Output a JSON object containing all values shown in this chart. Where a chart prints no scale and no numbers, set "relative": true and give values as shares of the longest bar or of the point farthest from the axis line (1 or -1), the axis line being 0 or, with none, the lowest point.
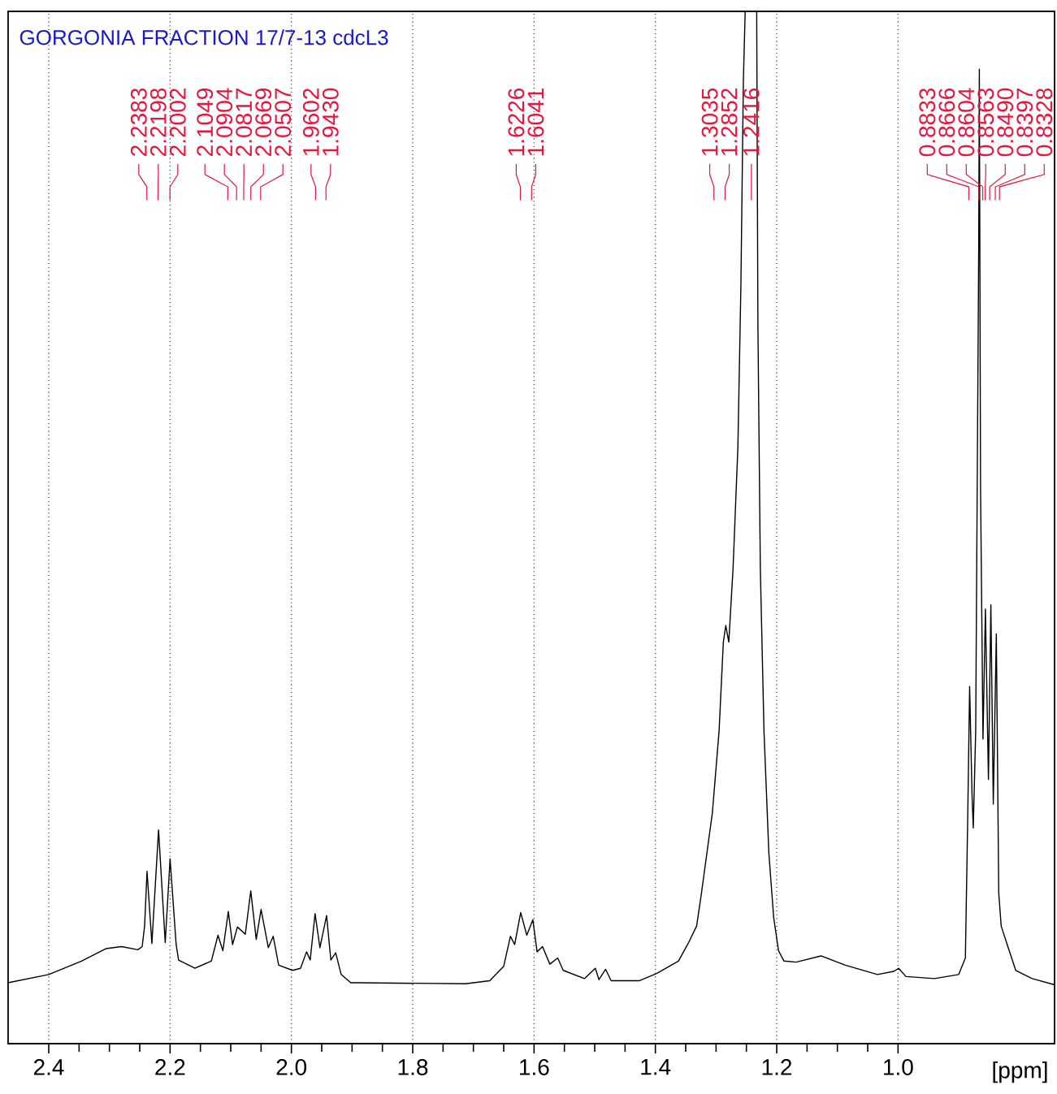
{
  "chart_data": {
    "type": "line",
    "title": "GORGONIA FRACTION 17/7-13 cdcL3",
    "xlabel": "[ppm]",
    "relative": true,
    "grid": "x",
    "marker": "none",
    "color": "#000000",
    "xlim": [
      2.467,
      0.742
    ],
    "xticks": [
      2.4,
      2.2,
      {
        "value": 2.0,
        "label": "2.0"
      },
      1.8,
      1.6,
      1.4,
      1.2,
      {
        "value": 1.0,
        "label": "1.0"
      }
    ],
    "x": [
      2.467,
      2.4,
      2.346,
      2.306,
      2.28,
      2.253,
      2.246,
      2.242,
      2.238,
      2.23,
      2.219,
      2.208,
      2.2,
      2.19,
      2.186,
      2.159,
      2.132,
      2.121,
      2.113,
      2.104,
      2.097,
      2.089,
      2.076,
      2.067,
      2.058,
      2.05,
      2.038,
      2.03,
      2.021,
      1.998,
      1.985,
      1.975,
      1.969,
      1.961,
      1.953,
      1.942,
      1.935,
      1.927,
      1.918,
      1.902,
      1.891,
      1.713,
      1.673,
      1.65,
      1.639,
      1.632,
      1.622,
      1.612,
      1.602,
      1.595,
      1.586,
      1.574,
      1.561,
      1.552,
      1.517,
      1.499,
      1.493,
      1.482,
      1.473,
      1.426,
      1.398,
      1.362,
      1.346,
      1.332,
      1.324,
      1.315,
      1.306,
      1.295,
      1.288,
      1.284,
      1.279,
      1.272,
      1.264,
      1.259,
      1.255,
      1.252,
      1.233,
      1.231,
      1.227,
      1.221,
      1.213,
      1.205,
      1.197,
      1.188,
      1.168,
      1.127,
      1.087,
      1.034,
      1.007,
      0.999,
      0.987,
      0.94,
      0.9,
      0.889,
      0.885,
      0.882,
      0.878,
      0.876,
      0.872,
      0.867,
      0.866,
      0.864,
      0.86,
      0.856,
      0.851,
      0.847,
      0.843,
      0.838,
      0.834,
      0.83,
      0.819,
      0.806,
      0.779,
      0.742
    ],
    "values": [
      0.059,
      0.067,
      0.08,
      0.092,
      0.094,
      0.091,
      0.094,
      0.114,
      0.167,
      0.097,
      0.207,
      0.098,
      0.179,
      0.096,
      0.081,
      0.073,
      0.08,
      0.105,
      0.09,
      0.128,
      0.096,
      0.113,
      0.106,
      0.148,
      0.101,
      0.13,
      0.093,
      0.104,
      0.076,
      0.071,
      0.073,
      0.089,
      0.081,
      0.126,
      0.093,
      0.124,
      0.081,
      0.088,
      0.067,
      0.059,
      0.059,
      0.058,
      0.061,
      0.075,
      0.104,
      0.096,
      0.127,
      0.105,
      0.12,
      0.089,
      0.094,
      0.077,
      0.083,
      0.071,
      0.063,
      0.073,
      0.062,
      0.072,
      0.061,
      0.061,
      0.068,
      0.08,
      0.097,
      0.114,
      0.146,
      0.185,
      0.224,
      0.303,
      0.389,
      0.405,
      0.389,
      0.46,
      0.578,
      0.736,
      0.932,
      1.0,
      1.0,
      0.696,
      0.46,
      0.303,
      0.185,
      0.122,
      0.09,
      0.08,
      0.079,
      0.085,
      0.076,
      0.067,
      0.07,
      0.073,
      0.065,
      0.063,
      0.067,
      0.083,
      0.224,
      0.346,
      0.24,
      0.209,
      0.303,
      0.775,
      0.944,
      0.539,
      0.295,
      0.421,
      0.256,
      0.425,
      0.232,
      0.397,
      0.146,
      0.114,
      0.094,
      0.071,
      0.063,
      0.057
    ],
    "annotations": [
      {
        "text": "2.2383",
        "x": 2.2383
      },
      {
        "text": "2.2198",
        "x": 2.2198
      },
      {
        "text": "2.2002",
        "x": 2.2002
      },
      {
        "text": "2.1049",
        "x": 2.1049
      },
      {
        "text": "2.0904",
        "x": 2.0904
      },
      "2.0817",
      {
        "text": "2.0669",
        "x": 2.0669
      },
      {
        "text": "2.0507",
        "x": 2.0507
      },
      {
        "text": "1.9602",
        "x": 1.9602
      },
      {
        "text": "1.9430",
        "x": 1.943
      },
      {
        "text": "1.6226",
        "x": 1.6226
      },
      {
        "text": "1.6041",
        "x": 1.6041
      },
      {
        "text": "1.3035",
        "x": 1.3035
      },
      {
        "text": "1.2852",
        "x": 1.2852
      },
      "1.2416",
      {
        "text": "0.8833",
        "x": 0.8833
      },
      {
        "text": "0.8666",
        "x": 0.8666
      },
      {
        "text": "0.8604",
        "x": 0.8604
      },
      {
        "text": "0.8563",
        "x": 0.8563
      },
      {
        "text": "0.8490",
        "x": 0.849
      },
      {
        "text": "0.8397",
        "x": 0.8397
      },
      {
        "text": "0.8328",
        "x": 0.8328
      }
    ]
  }
}
